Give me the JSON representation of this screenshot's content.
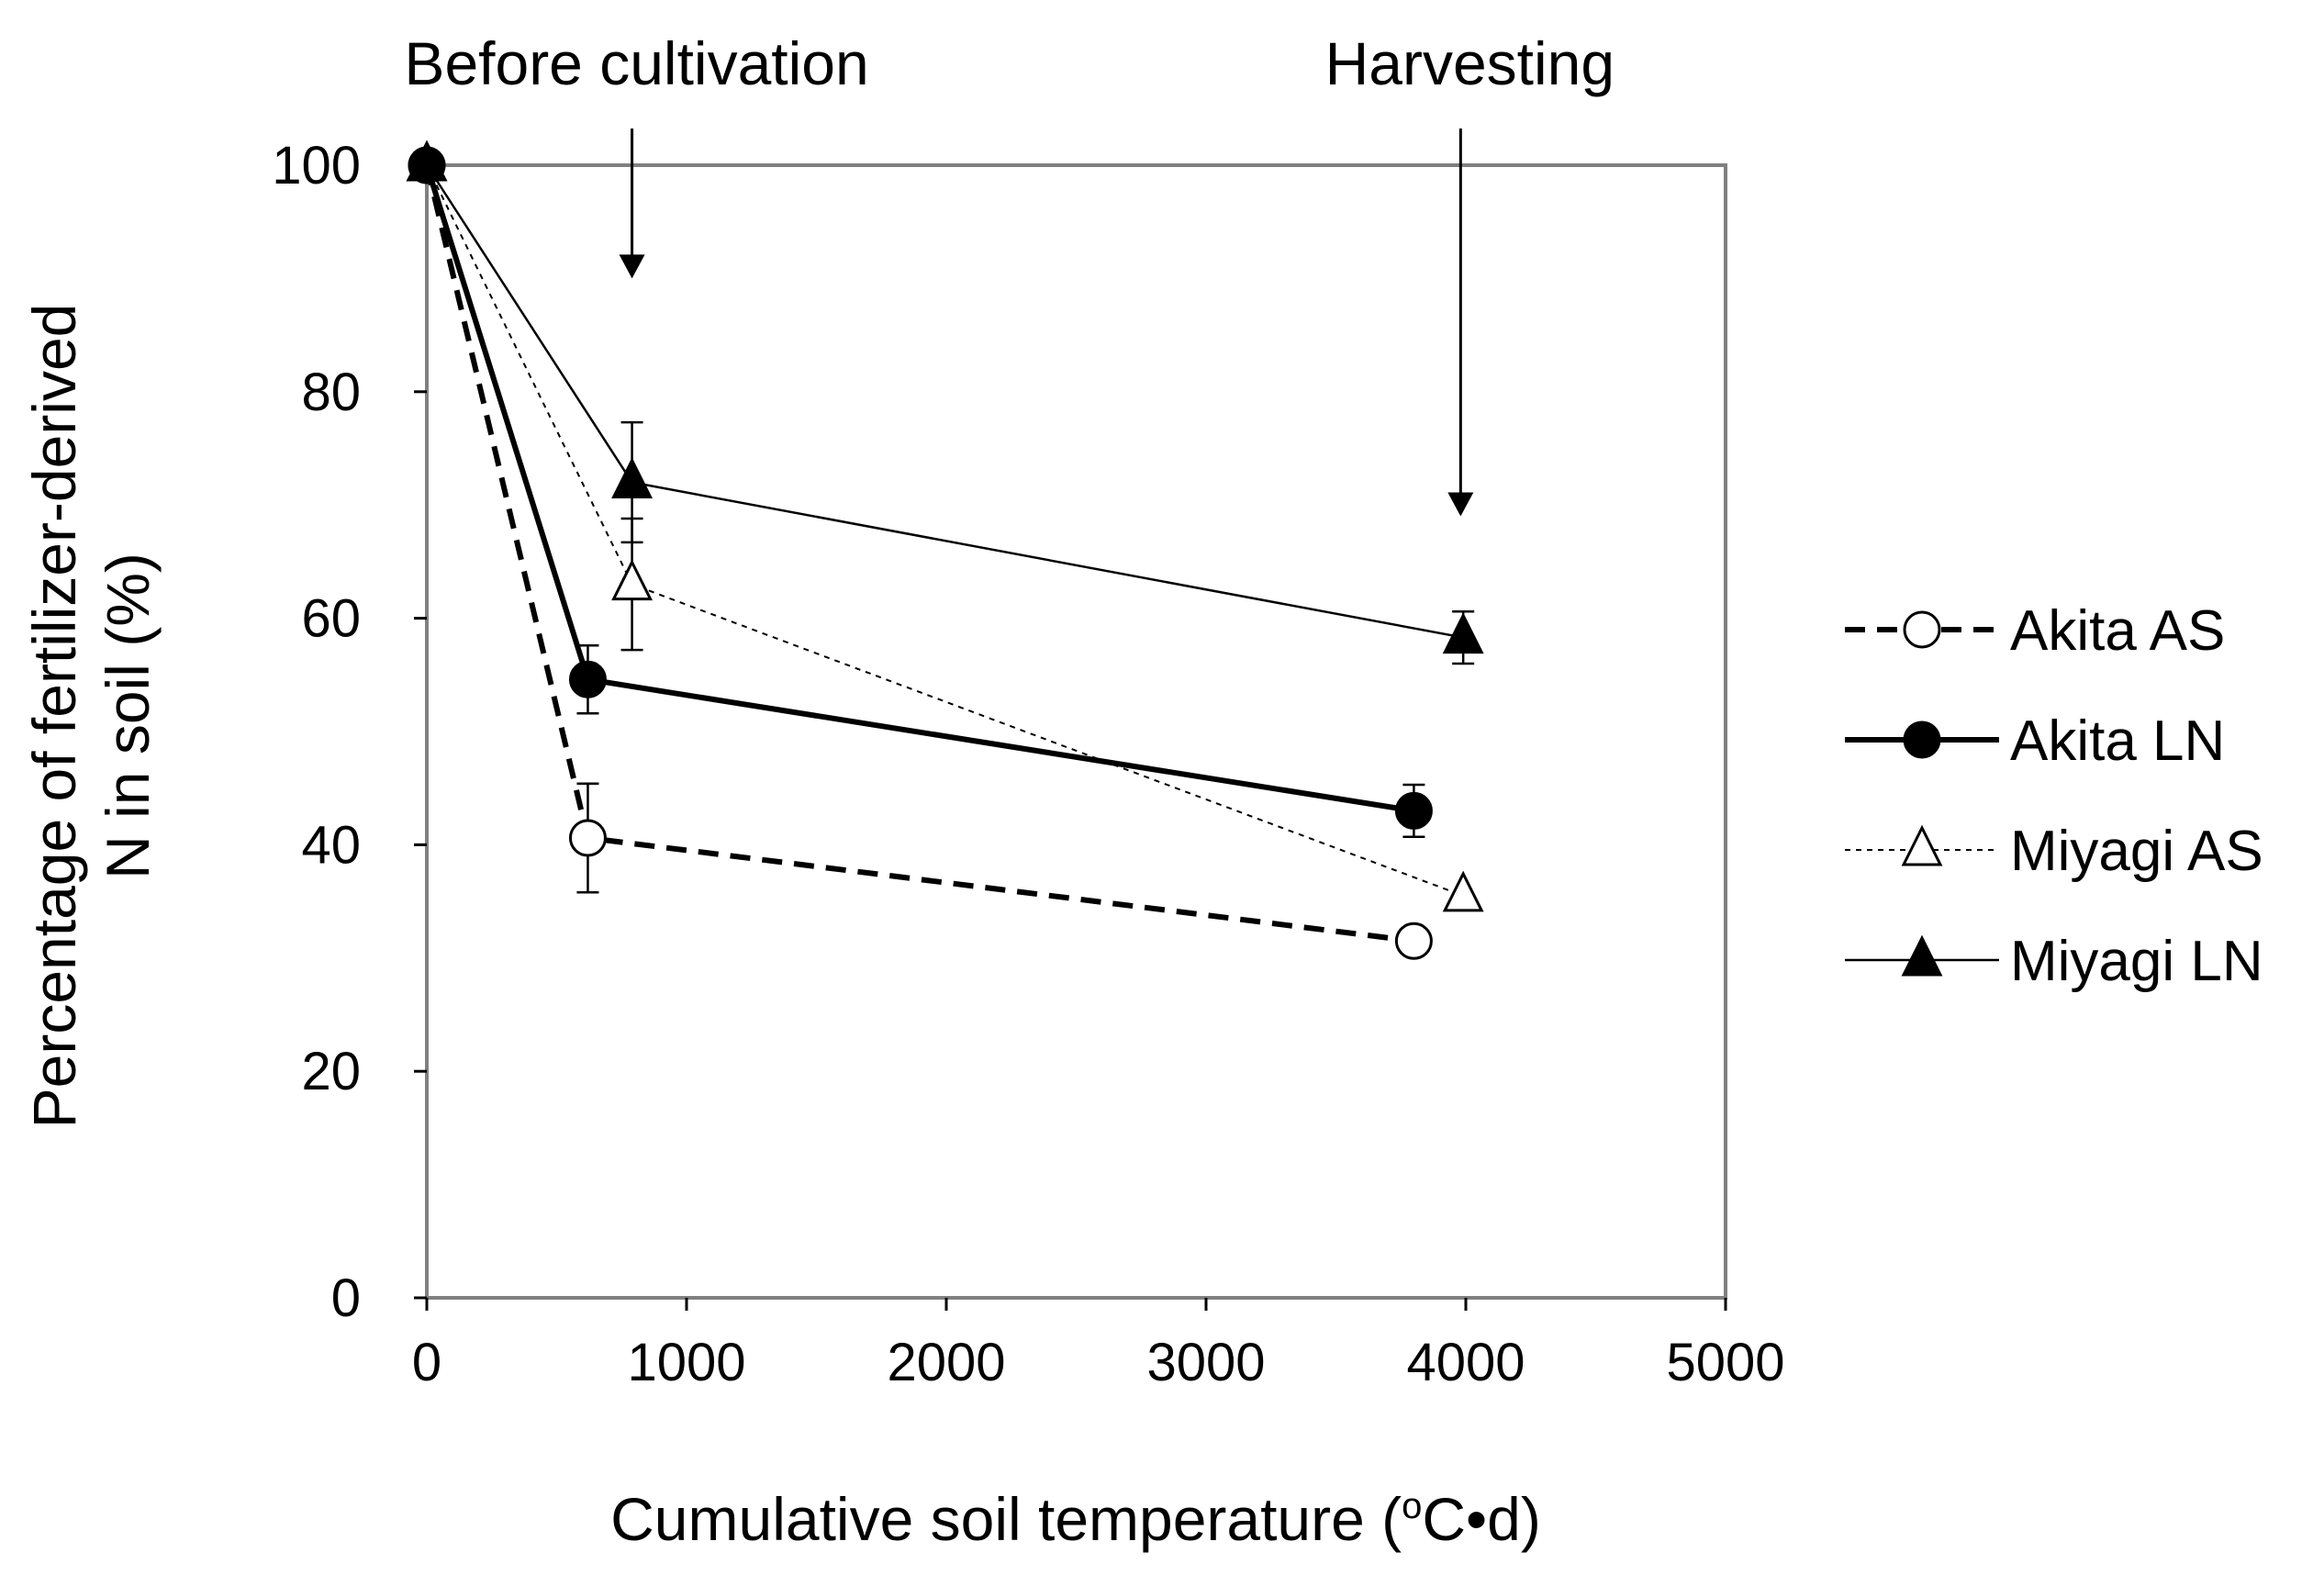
{
  "chart_data": {
    "type": "line",
    "title": "",
    "xlabel": "Cumulative soil temperature (°C•d)",
    "xlabel_parts": {
      "pre": "Cumulative soil temperature (",
      "sup": "o",
      "post": "C•d)"
    },
    "ylabel_lines": [
      "Percentage of fertilizer-derived",
      "N in soil (%)"
    ],
    "xlim": [
      0,
      5000
    ],
    "ylim": [
      0,
      100
    ],
    "x_ticks": [
      0,
      1000,
      2000,
      3000,
      4000,
      5000
    ],
    "y_ticks": [
      0,
      20,
      40,
      60,
      80,
      100
    ],
    "grid": false,
    "legend_position": "right",
    "annotations": [
      {
        "text": "Before cultivation",
        "x": 790,
        "arrow_from_y": 100,
        "arrow_to_y": 90
      },
      {
        "text": "Harvesting",
        "x": 3980,
        "arrow_from_y": 100,
        "arrow_to_y": 69
      }
    ],
    "series": [
      {
        "name": "Akita AS",
        "line": "dashed-bold",
        "marker": "circle-open",
        "x": [
          0,
          620,
          3800
        ],
        "y": [
          100,
          40.6,
          31.5
        ],
        "err": [
          0,
          4.8,
          0
        ]
      },
      {
        "name": "Akita LN",
        "line": "solid-bold",
        "marker": "circle-filled",
        "x": [
          0,
          620,
          3800
        ],
        "y": [
          100,
          54.6,
          43.0
        ],
        "err": [
          0,
          3.0,
          2.3
        ]
      },
      {
        "name": "Miyagi AS",
        "line": "dotted-thin",
        "marker": "triangle-open",
        "x": [
          0,
          790,
          3990
        ],
        "y": [
          100,
          63.0,
          35.5
        ],
        "err": [
          0,
          5.8,
          0
        ]
      },
      {
        "name": "Miyagi LN",
        "line": "solid-thin",
        "marker": "triangle-filled",
        "x": [
          0,
          790,
          3990
        ],
        "y": [
          100,
          72.0,
          58.3
        ],
        "err": [
          0,
          5.3,
          2.3
        ]
      }
    ]
  }
}
